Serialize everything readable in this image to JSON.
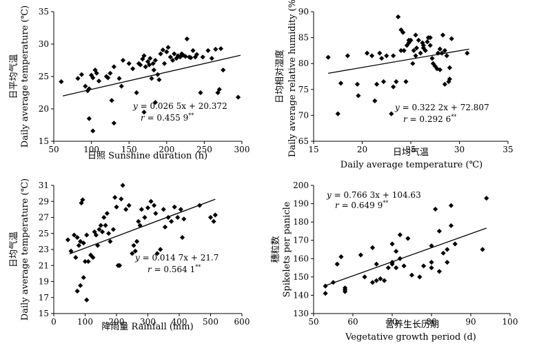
{
  "chart_data": [
    {
      "type": "scatter",
      "xlabel": "日照 Sunshine duration (h)",
      "ylabel_cn": "日平均气温",
      "ylabel_en": "Daily average temperature (℃)",
      "xlim": [
        50,
        300
      ],
      "ylim": [
        15,
        35
      ],
      "xticks": [
        50,
        100,
        150,
        200,
        250,
        300
      ],
      "yticks": [
        15,
        20,
        25,
        30,
        35
      ],
      "equation": "y = 0.026 5x + 20.372",
      "r_value": "r = 0.455 9**",
      "trendline": {
        "x": [
          62,
          298
        ],
        "y": [
          22.0,
          28.27
        ]
      },
      "points": {
        "x": [
          60,
          82,
          87,
          92,
          95,
          97,
          100,
          102,
          105,
          107,
          110,
          120,
          122,
          125,
          127,
          130,
          137,
          140,
          142,
          150,
          155,
          160,
          163,
          165,
          168,
          170,
          172,
          175,
          177,
          178,
          180,
          182,
          183,
          185,
          188,
          190,
          192,
          195,
          197,
          200,
          202,
          205,
          208,
          210,
          213,
          215,
          218,
          220,
          222,
          225,
          227,
          230,
          232,
          235,
          238,
          240,
          245,
          248,
          255,
          260,
          265,
          268,
          270,
          272,
          275,
          295,
          97,
          102,
          130,
          170,
          185
        ],
        "y": [
          24.2,
          24.7,
          25.3,
          23.5,
          22.8,
          23.1,
          25.2,
          24.8,
          26.0,
          25.5,
          24.3,
          25.0,
          24.8,
          25.5,
          21.3,
          26.5,
          24.7,
          23.5,
          27.5,
          27.0,
          26.2,
          22.5,
          27.0,
          26.8,
          27.7,
          28.2,
          26.5,
          27.3,
          26.8,
          27.8,
          24.7,
          27.0,
          26.0,
          27.5,
          25.3,
          24.5,
          28.5,
          29.1,
          27.0,
          28.8,
          29.5,
          28.0,
          27.5,
          28.5,
          27.8,
          28.2,
          28.0,
          28.5,
          28.3,
          28.1,
          30.8,
          28.0,
          27.9,
          29.0,
          28.0,
          28.4,
          22.5,
          28.0,
          29.0,
          27.8,
          29.2,
          22.5,
          23.0,
          29.3,
          26.0,
          21.8,
          18.5,
          16.6,
          17.8,
          19.5,
          21.0
        ]
      }
    },
    {
      "type": "scatter",
      "xlabel_cn": "日均气温",
      "xlabel_en": "Daily average temperature (℃)",
      "ylabel_cn": "日均相对湿度",
      "ylabel_en": "Daily average relative humidity (%)",
      "xlim": [
        15,
        35
      ],
      "ylim": [
        65,
        90
      ],
      "xticks": [
        15,
        20,
        25,
        30,
        35
      ],
      "yticks": [
        65,
        70,
        75,
        80,
        85,
        90
      ],
      "equation": "y = 0.322 2x + 72.807",
      "r_value": "r = 0.292 6**",
      "trendline": {
        "x": [
          16.5,
          31
        ],
        "y": [
          78.12,
          82.79
        ]
      },
      "points": {
        "x": [
          16.5,
          17.5,
          17.8,
          18.5,
          19.5,
          19.6,
          20.5,
          21.0,
          21.3,
          21.5,
          21.8,
          22.0,
          22.2,
          22.5,
          23.0,
          23.2,
          23.5,
          23.7,
          24.0,
          24.2,
          24.3,
          24.5,
          24.6,
          24.8,
          25.0,
          25.2,
          25.3,
          25.5,
          25.6,
          25.8,
          26.0,
          26.2,
          26.3,
          26.5,
          26.7,
          26.8,
          27.0,
          27.2,
          27.3,
          27.5,
          27.7,
          28.0,
          28.2,
          28.3,
          28.5,
          28.7,
          28.9,
          29.0,
          29.2,
          30.8,
          23.2,
          24.0,
          24.8,
          25.5,
          26.3,
          27.0,
          27.8,
          28.5,
          29.0,
          28.0
        ],
        "y": [
          81.2,
          70.3,
          76.2,
          81.5,
          76.0,
          73.8,
          82.0,
          81.5,
          72.8,
          76.0,
          82.0,
          81.0,
          76.5,
          81.5,
          70.3,
          75.5,
          76.5,
          89.0,
          86.5,
          86.0,
          82.5,
          76.5,
          83.5,
          84.0,
          84.5,
          80.0,
          82.5,
          81.5,
          83.0,
          84.5,
          82.0,
          84.0,
          83.0,
          82.5,
          84.2,
          85.0,
          83.5,
          81.0,
          80.0,
          79.5,
          79.0,
          78.8,
          82.0,
          85.5,
          82.5,
          81.5,
          76.5,
          79.2,
          84.8,
          82.0,
          81.5,
          82.5,
          84.5,
          85.5,
          83.5,
          85.0,
          82.0,
          76.0,
          77.0,
          82.8
        ]
      }
    },
    {
      "type": "scatter",
      "xlabel": "降雨量 Rainfall (mm)",
      "ylabel_cn": "日均气温",
      "ylabel_en": "Daily average temperature (℃)",
      "xlim": [
        0,
        600
      ],
      "ylim": [
        15,
        31
      ],
      "xticks": [
        0,
        100,
        200,
        300,
        400,
        500,
        600
      ],
      "yticks": [
        15,
        17,
        19,
        21,
        23,
        25,
        27,
        29,
        31
      ],
      "equation": "y = 0.014 7x + 21.7",
      "r_value": "r = 0.564 1**",
      "trendline": {
        "x": [
          50,
          515
        ],
        "y": [
          22.44,
          29.27
        ]
      },
      "points": {
        "x": [
          45,
          55,
          65,
          70,
          75,
          80,
          85,
          88,
          92,
          95,
          100,
          105,
          110,
          118,
          125,
          130,
          135,
          140,
          145,
          150,
          155,
          160,
          165,
          170,
          175,
          180,
          190,
          195,
          200,
          205,
          210,
          215,
          220,
          230,
          240,
          250,
          255,
          260,
          265,
          270,
          275,
          280,
          290,
          300,
          310,
          320,
          325,
          330,
          340,
          350,
          355,
          365,
          375,
          385,
          395,
          405,
          410,
          415,
          465,
          500,
          510,
          515,
          75,
          85,
          95,
          105
        ],
        "y": [
          24.2,
          22.8,
          24.8,
          22.0,
          24.5,
          23.5,
          24.0,
          28.8,
          29.2,
          23.8,
          21.5,
          24.8,
          21.5,
          22.3,
          22.0,
          25.2,
          24.8,
          23.5,
          25.5,
          26.0,
          25.2,
          27.0,
          26.0,
          27.5,
          25.0,
          24.0,
          25.5,
          29.5,
          28.3,
          21.0,
          21.0,
          29.3,
          31.0,
          28.0,
          28.5,
          22.5,
          23.5,
          22.8,
          24.0,
          26.5,
          26.0,
          28.0,
          27.0,
          28.2,
          29.0,
          28.5,
          27.5,
          22.5,
          23.0,
          28.0,
          25.8,
          27.0,
          26.5,
          28.3,
          27.0,
          28.0,
          24.5,
          26.8,
          28.5,
          27.0,
          26.5,
          27.3,
          17.8,
          18.5,
          19.5,
          16.7
        ]
      }
    },
    {
      "type": "scatter",
      "xlabel_cn": "营养生长历期",
      "xlabel_en": "Vegetative growth period (d)",
      "ylabel_cn": "穗粒数",
      "ylabel_en": "Spikelets per panicle",
      "xlim": [
        50,
        100
      ],
      "ylim": [
        130,
        200
      ],
      "xticks": [
        50,
        60,
        70,
        80,
        90,
        100
      ],
      "yticks": [
        130,
        140,
        150,
        160,
        170,
        180,
        190,
        200
      ],
      "equation": "y = 0.766 3x + 104.63",
      "r_value": "r = 0.649 9**",
      "trendline": {
        "x": [
          53,
          94
        ],
        "y": [
          145.24,
          176.66
        ]
      },
      "points": {
        "x": [
          53,
          53,
          55,
          56,
          57,
          58,
          58,
          58,
          62,
          63,
          65,
          65,
          66,
          66,
          67,
          68,
          69,
          70,
          70,
          70,
          71,
          71,
          72,
          72,
          73,
          74,
          75,
          77,
          78,
          80,
          80,
          80,
          81,
          82,
          82,
          83,
          84,
          84,
          85,
          85,
          86,
          93,
          94
        ],
        "y": [
          145,
          141,
          147,
          157,
          161,
          142,
          144,
          143,
          162,
          150,
          147,
          166,
          148,
          157,
          149,
          148,
          155,
          157,
          158,
          168,
          164,
          155,
          160,
          173,
          156,
          171,
          151,
          150,
          156,
          158,
          155,
          167,
          187,
          153,
          175,
          163,
          165,
          158,
          189,
          178,
          168,
          165,
          193
        ]
      }
    }
  ]
}
